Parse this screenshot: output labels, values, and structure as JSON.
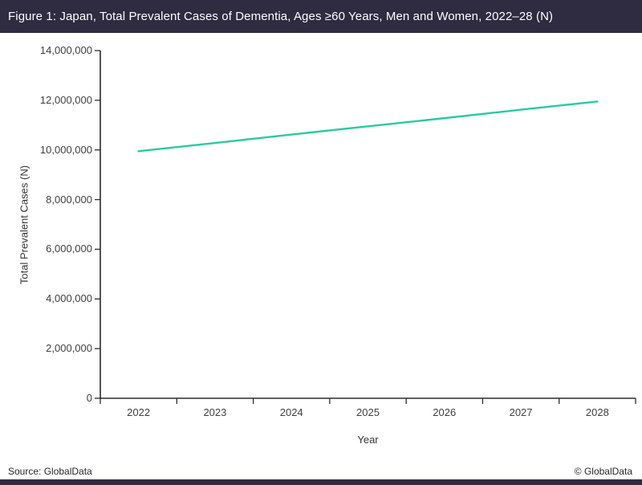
{
  "header": {
    "title": "Figure 1: Japan, Total Prevalent Cases of Dementia, Ages ≥60 Years, Men and Women, 2022–28 (N)"
  },
  "chart_data": {
    "type": "line",
    "title": "Figure 1: Japan, Total Prevalent Cases of Dementia, Ages ≥60 Years, Men and Women, 2022–28 (N)",
    "x_categories": [
      "2022",
      "2023",
      "2024",
      "2025",
      "2026",
      "2027",
      "2028"
    ],
    "series": [
      {
        "name": "Total Prevalent Cases (N)",
        "values": [
          9950000,
          10280000,
          10620000,
          10950000,
          11280000,
          11620000,
          11950000
        ],
        "color": "#2cc9a1"
      }
    ],
    "xlabel": "Year",
    "ylabel": "Total Prevalent Cases (N)",
    "ylim": [
      0,
      14000000
    ],
    "yticks": [
      0,
      2000000,
      4000000,
      6000000,
      8000000,
      10000000,
      12000000,
      14000000
    ],
    "yticklabels": [
      "0",
      "2,000,000",
      "4,000,000",
      "6,000,000",
      "8,000,000",
      "10,000,000",
      "12,000,000",
      "14,000,000"
    ],
    "grid": false,
    "legend": "none"
  },
  "footer": {
    "source": "Source: GlobalData",
    "copyright": "© GlobalData"
  },
  "colors": {
    "header_bg": "#2f2b40",
    "accent_bar": "#2f2b40",
    "line": "#2cc9a1",
    "axis": "#2b2b2b",
    "tick_text": "#3f3f3f"
  }
}
